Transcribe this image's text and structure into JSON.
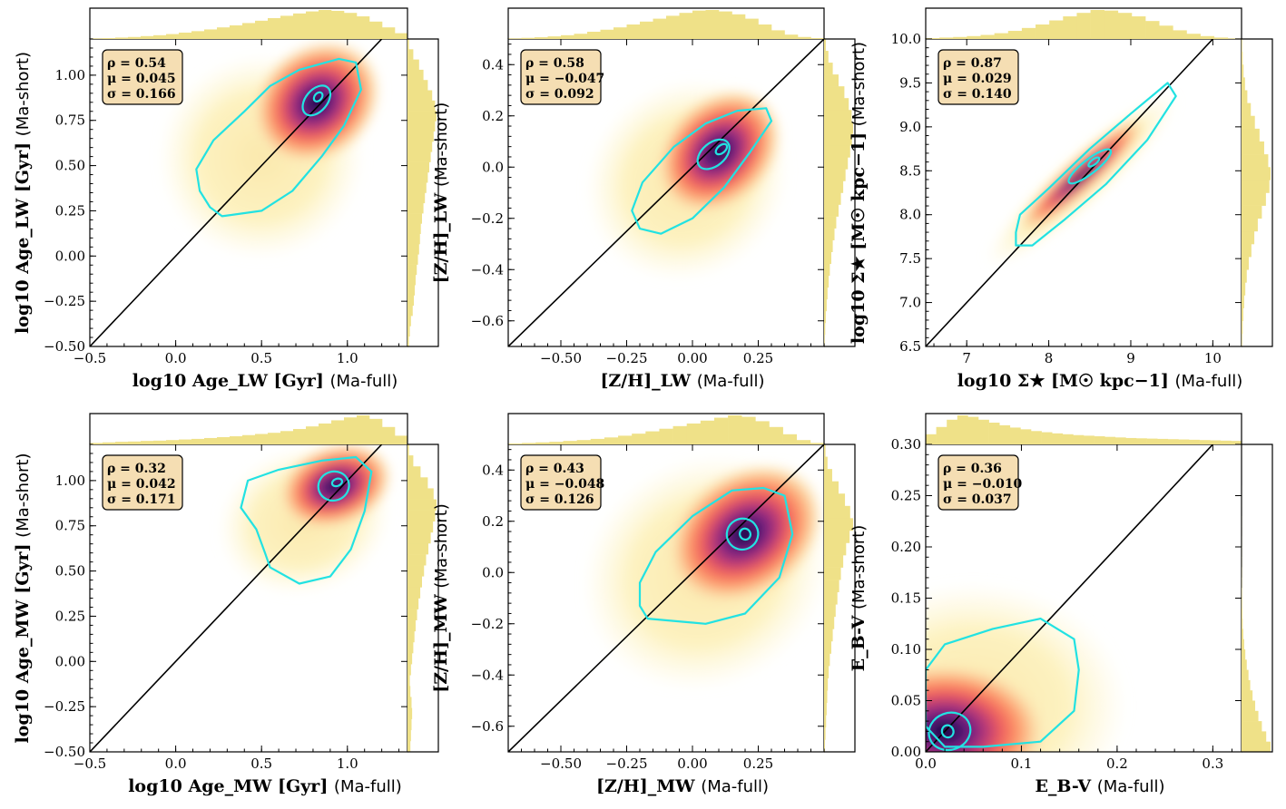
{
  "chart_data": [
    {
      "type": "scatter",
      "title": "",
      "xlabel": {
        "main": "log10 Age_LW [Gyr]",
        "suffix": "(Ma-full)"
      },
      "ylabel": {
        "main": "log10 Age_LW [Gyr]",
        "suffix": "(Ma-short)"
      },
      "xlim": [
        -0.5,
        1.35
      ],
      "ylim": [
        -0.5,
        1.2
      ],
      "xticks": [
        -0.5,
        0.0,
        0.5,
        1.0
      ],
      "xtick_labels": [
        "−0.5",
        "0.0",
        "0.5",
        "1.0"
      ],
      "yticks": [
        -0.5,
        -0.25,
        0.0,
        0.25,
        0.5,
        0.75,
        1.0
      ],
      "ytick_labels": [
        "−0.50",
        "−0.25",
        "0.00",
        "0.25",
        "0.50",
        "0.75",
        "1.00"
      ],
      "stats": [
        "ρ = 0.54",
        "μ = 0.045",
        "σ = 0.166"
      ],
      "density_peak": [
        0.82,
        0.85
      ],
      "cloud_center": [
        0.5,
        0.55
      ],
      "cloud_spread": [
        0.45,
        0.42
      ],
      "cloud_rotation_deg": 40,
      "core_ellipse": {
        "center": [
          0.82,
          0.86
        ],
        "rx": 0.1,
        "ry": 0.06,
        "angle_deg": 50
      },
      "peak_ellipse": {
        "center": [
          0.83,
          0.88
        ],
        "rx": 0.03,
        "ry": 0.02,
        "angle_deg": 50
      },
      "outer_contour": [
        [
          0.27,
          0.22
        ],
        [
          0.5,
          0.25
        ],
        [
          0.68,
          0.36
        ],
        [
          0.85,
          0.55
        ],
        [
          0.98,
          0.72
        ],
        [
          1.08,
          0.92
        ],
        [
          1.05,
          1.07
        ],
        [
          0.95,
          1.09
        ],
        [
          0.72,
          1.03
        ],
        [
          0.55,
          0.94
        ],
        [
          0.4,
          0.8
        ],
        [
          0.22,
          0.64
        ],
        [
          0.12,
          0.48
        ],
        [
          0.14,
          0.36
        ],
        [
          0.2,
          0.27
        ]
      ],
      "hist_top": [
        0.02,
        0.03,
        0.05,
        0.07,
        0.1,
        0.13,
        0.17,
        0.22,
        0.27,
        0.33,
        0.4,
        0.47,
        0.55,
        0.63,
        0.72,
        0.8,
        0.88,
        0.95,
        1.0,
        0.97,
        0.9,
        0.78,
        0.6,
        0.4,
        0.2
      ],
      "hist_right": [
        0.05,
        0.08,
        0.12,
        0.18,
        0.22,
        0.25,
        0.28,
        0.32,
        0.36,
        0.4,
        0.43,
        0.46,
        0.5,
        0.55,
        0.6,
        0.65,
        0.7,
        0.75,
        0.8,
        0.85,
        0.9,
        0.95,
        1.0,
        0.95,
        0.85,
        0.7,
        0.55,
        0.4,
        0.2,
        0.05
      ]
    },
    {
      "type": "scatter",
      "title": "",
      "xlabel": {
        "main": "[Z/H]_LW",
        "suffix": "(Ma-full)"
      },
      "ylabel": {
        "main": "[Z/H]_LW",
        "suffix": "(Ma-short)"
      },
      "xlim": [
        -0.7,
        0.5
      ],
      "ylim": [
        -0.7,
        0.5
      ],
      "xticks": [
        -0.5,
        -0.25,
        0.0,
        0.25
      ],
      "xtick_labels": [
        "−0.50",
        "−0.25",
        "0.00",
        "0.25"
      ],
      "yticks": [
        -0.6,
        -0.4,
        -0.2,
        0.0,
        0.2,
        0.4
      ],
      "ytick_labels": [
        "−0.6",
        "−0.4",
        "−0.2",
        "0.0",
        "0.2",
        "0.4"
      ],
      "stats": [
        "ρ = 0.58",
        "μ = −0.047",
        "σ = 0.092"
      ],
      "density_peak": [
        0.1,
        0.06
      ],
      "cloud_center": [
        -0.02,
        -0.05
      ],
      "cloud_spread": [
        0.3,
        0.28
      ],
      "cloud_rotation_deg": 45,
      "core_ellipse": {
        "center": [
          0.08,
          0.05
        ],
        "rx": 0.07,
        "ry": 0.045,
        "angle_deg": 40
      },
      "peak_ellipse": {
        "center": [
          0.11,
          0.07
        ],
        "rx": 0.025,
        "ry": 0.015,
        "angle_deg": 40
      },
      "outer_contour": [
        [
          -0.12,
          -0.26
        ],
        [
          0.0,
          -0.2
        ],
        [
          0.12,
          -0.08
        ],
        [
          0.22,
          0.06
        ],
        [
          0.3,
          0.18
        ],
        [
          0.28,
          0.23
        ],
        [
          0.17,
          0.22
        ],
        [
          0.05,
          0.17
        ],
        [
          -0.07,
          0.08
        ],
        [
          -0.19,
          -0.06
        ],
        [
          -0.23,
          -0.17
        ],
        [
          -0.2,
          -0.24
        ]
      ],
      "hist_top": [
        0.02,
        0.04,
        0.06,
        0.09,
        0.13,
        0.18,
        0.25,
        0.32,
        0.4,
        0.5,
        0.6,
        0.7,
        0.8,
        0.9,
        0.98,
        1.0,
        0.95,
        0.85,
        0.7,
        0.5,
        0.3,
        0.15,
        0.07,
        0.03
      ],
      "hist_right": [
        0.02,
        0.04,
        0.06,
        0.09,
        0.12,
        0.16,
        0.2,
        0.25,
        0.3,
        0.36,
        0.42,
        0.5,
        0.58,
        0.66,
        0.74,
        0.82,
        0.9,
        0.96,
        1.0,
        0.95,
        0.85,
        0.7,
        0.5,
        0.3,
        0.15,
        0.06
      ]
    },
    {
      "type": "scatter",
      "title": "",
      "xlabel": {
        "main": "log10 Σ★ [M☉ kpc−1]",
        "suffix": "(Ma-full)"
      },
      "ylabel": {
        "main": "log10 Σ★ [M☉ kpc−1]",
        "suffix": "(Ma-short)"
      },
      "xlim": [
        6.5,
        10.35
      ],
      "ylim": [
        6.5,
        10.0
      ],
      "xticks": [
        7,
        8,
        9,
        10
      ],
      "xtick_labels": [
        "7",
        "8",
        "9",
        "10"
      ],
      "yticks": [
        6.5,
        7.0,
        7.5,
        8.0,
        8.5,
        9.0,
        9.5,
        10.0
      ],
      "ytick_labels": [
        "6.5",
        "7.0",
        "7.5",
        "8.0",
        "8.5",
        "9.0",
        "9.5",
        "10.0"
      ],
      "stats": [
        "ρ = 0.87",
        "μ = 0.029",
        "σ = 0.140"
      ],
      "density_peak": [
        8.4,
        8.45
      ],
      "cloud_center": [
        8.4,
        8.4
      ],
      "cloud_spread": [
        1.15,
        0.22
      ],
      "cloud_rotation_deg": 42,
      "core_ellipse": {
        "center": [
          8.5,
          8.55
        ],
        "rx": 0.32,
        "ry": 0.08,
        "angle_deg": 38
      },
      "peak_ellipse": {
        "center": [
          8.55,
          8.6
        ],
        "rx": 0.08,
        "ry": 0.03,
        "angle_deg": 38
      },
      "outer_contour": [
        [
          7.6,
          7.65
        ],
        [
          7.8,
          7.65
        ],
        [
          8.2,
          7.95
        ],
        [
          8.7,
          8.35
        ],
        [
          9.2,
          8.85
        ],
        [
          9.55,
          9.35
        ],
        [
          9.45,
          9.5
        ],
        [
          9.0,
          9.15
        ],
        [
          8.5,
          8.75
        ],
        [
          8.0,
          8.3
        ],
        [
          7.65,
          8.0
        ],
        [
          7.6,
          7.8
        ]
      ],
      "hist_top": [
        0.03,
        0.05,
        0.07,
        0.1,
        0.14,
        0.2,
        0.28,
        0.38,
        0.5,
        0.64,
        0.78,
        0.9,
        1.0,
        0.98,
        0.9,
        0.78,
        0.62,
        0.46,
        0.3,
        0.18,
        0.1,
        0.05,
        0.02
      ],
      "hist_right": [
        0.02,
        0.04,
        0.06,
        0.09,
        0.13,
        0.18,
        0.25,
        0.34,
        0.44,
        0.56,
        0.7,
        0.84,
        0.96,
        1.0,
        0.92,
        0.78,
        0.62,
        0.46,
        0.32,
        0.2,
        0.12,
        0.07,
        0.04,
        0.02
      ]
    },
    {
      "type": "scatter",
      "title": "",
      "xlabel": {
        "main": "log10 Age_MW [Gyr]",
        "suffix": "(Ma-full)"
      },
      "ylabel": {
        "main": "log10 Age_MW [Gyr]",
        "suffix": "(Ma-short)"
      },
      "xlim": [
        -0.5,
        1.35
      ],
      "ylim": [
        -0.5,
        1.2
      ],
      "xticks": [
        -0.5,
        0.0,
        0.5,
        1.0
      ],
      "xtick_labels": [
        "−0.5",
        "0.0",
        "0.5",
        "1.0"
      ],
      "yticks": [
        -0.5,
        -0.25,
        0.0,
        0.25,
        0.5,
        0.75,
        1.0
      ],
      "ytick_labels": [
        "−0.50",
        "−0.25",
        "0.00",
        "0.25",
        "0.50",
        "0.75",
        "1.00"
      ],
      "stats": [
        "ρ = 0.32",
        "μ = 0.042",
        "σ = 0.171"
      ],
      "density_peak": [
        0.93,
        0.97
      ],
      "cloud_center": [
        0.75,
        0.78
      ],
      "cloud_spread": [
        0.38,
        0.3
      ],
      "cloud_rotation_deg": 20,
      "core_ellipse": {
        "center": [
          0.92,
          0.97
        ],
        "rx": 0.09,
        "ry": 0.08,
        "angle_deg": 20
      },
      "peak_ellipse": {
        "center": [
          0.94,
          0.99
        ],
        "rx": 0.03,
        "ry": 0.02,
        "angle_deg": 20
      },
      "outer_contour": [
        [
          0.55,
          0.52
        ],
        [
          0.72,
          0.43
        ],
        [
          0.9,
          0.47
        ],
        [
          1.02,
          0.62
        ],
        [
          1.1,
          0.83
        ],
        [
          1.14,
          1.05
        ],
        [
          1.05,
          1.13
        ],
        [
          0.85,
          1.11
        ],
        [
          0.6,
          1.06
        ],
        [
          0.42,
          1.0
        ],
        [
          0.38,
          0.85
        ],
        [
          0.47,
          0.73
        ],
        [
          0.52,
          0.6
        ]
      ],
      "hist_top": [
        0.05,
        0.07,
        0.09,
        0.1,
        0.12,
        0.13,
        0.15,
        0.17,
        0.19,
        0.22,
        0.25,
        0.28,
        0.32,
        0.36,
        0.4,
        0.46,
        0.53,
        0.62,
        0.72,
        0.83,
        0.93,
        1.0,
        0.88,
        0.6,
        0.3
      ],
      "hist_right": [
        0.1,
        0.12,
        0.14,
        0.16,
        0.14,
        0.1,
        0.08,
        0.12,
        0.16,
        0.2,
        0.24,
        0.28,
        0.33,
        0.38,
        0.44,
        0.5,
        0.57,
        0.64,
        0.72,
        0.8,
        0.88,
        0.95,
        1.0,
        0.9,
        0.7,
        0.45,
        0.2,
        0.05
      ]
    },
    {
      "type": "scatter",
      "title": "",
      "xlabel": {
        "main": "[Z/H]_MW",
        "suffix": "(Ma-full)"
      },
      "ylabel": {
        "main": "[Z/H]_MW",
        "suffix": "(Ma-short)"
      },
      "xlim": [
        -0.7,
        0.5
      ],
      "ylim": [
        -0.7,
        0.5
      ],
      "xticks": [
        -0.5,
        -0.25,
        0.0,
        0.25
      ],
      "xtick_labels": [
        "−0.50",
        "−0.25",
        "0.00",
        "0.25"
      ],
      "yticks": [
        -0.6,
        -0.4,
        -0.2,
        0.0,
        0.2,
        0.4
      ],
      "ytick_labels": [
        "−0.6",
        "−0.4",
        "−0.2",
        "0.0",
        "0.2",
        "0.4"
      ],
      "stats": [
        "ρ = 0.43",
        "μ = −0.048",
        "σ = 0.126"
      ],
      "density_peak": [
        0.2,
        0.15
      ],
      "cloud_center": [
        0.05,
        0.0
      ],
      "cloud_spread": [
        0.36,
        0.33
      ],
      "cloud_rotation_deg": 35,
      "core_ellipse": {
        "center": [
          0.19,
          0.15
        ],
        "rx": 0.06,
        "ry": 0.06,
        "angle_deg": 30
      },
      "peak_ellipse": {
        "center": [
          0.2,
          0.15
        ],
        "rx": 0.02,
        "ry": 0.022,
        "angle_deg": 30
      },
      "outer_contour": [
        [
          -0.17,
          -0.18
        ],
        [
          0.05,
          -0.2
        ],
        [
          0.2,
          -0.16
        ],
        [
          0.33,
          -0.02
        ],
        [
          0.38,
          0.15
        ],
        [
          0.35,
          0.3
        ],
        [
          0.27,
          0.33
        ],
        [
          0.15,
          0.32
        ],
        [
          0.0,
          0.22
        ],
        [
          -0.14,
          0.08
        ],
        [
          -0.2,
          -0.04
        ],
        [
          -0.2,
          -0.13
        ]
      ],
      "hist_top": [
        0.03,
        0.05,
        0.07,
        0.09,
        0.12,
        0.15,
        0.19,
        0.24,
        0.3,
        0.37,
        0.45,
        0.54,
        0.63,
        0.72,
        0.82,
        0.92,
        1.0,
        0.95,
        0.8,
        0.6,
        0.35,
        0.15,
        0.05
      ],
      "hist_right": [
        0.03,
        0.05,
        0.07,
        0.09,
        0.11,
        0.13,
        0.16,
        0.2,
        0.25,
        0.3,
        0.35,
        0.4,
        0.46,
        0.52,
        0.58,
        0.66,
        0.76,
        0.88,
        1.0,
        0.9,
        0.72,
        0.5,
        0.28,
        0.12,
        0.05
      ]
    },
    {
      "type": "scatter",
      "title": "",
      "xlabel": {
        "main": "E_B-V",
        "suffix": "(Ma-full)"
      },
      "ylabel": {
        "main": "E_B-V",
        "suffix": "(Ma-short)"
      },
      "xlim": [
        0.0,
        0.33
      ],
      "ylim": [
        0.0,
        0.3
      ],
      "xticks": [
        0.0,
        0.1,
        0.2,
        0.3
      ],
      "xtick_labels": [
        "0.0",
        "0.1",
        "0.2",
        "0.3"
      ],
      "yticks": [
        0.0,
        0.05,
        0.1,
        0.15,
        0.2,
        0.25,
        0.3
      ],
      "ytick_labels": [
        "0.00",
        "0.05",
        "0.10",
        "0.15",
        "0.20",
        "0.25",
        "0.30"
      ],
      "stats": [
        "ρ = 0.36",
        "μ = −0.010",
        "σ = 0.037"
      ],
      "density_peak": [
        0.02,
        0.02
      ],
      "cloud_center": [
        0.05,
        0.045
      ],
      "cloud_spread": [
        0.12,
        0.09
      ],
      "cloud_rotation_deg": 0,
      "core_ellipse": {
        "center": [
          0.025,
          0.02
        ],
        "rx": 0.022,
        "ry": 0.018,
        "angle_deg": 20
      },
      "peak_ellipse": {
        "center": [
          0.023,
          0.02
        ],
        "rx": 0.006,
        "ry": 0.006,
        "angle_deg": 20
      },
      "outer_contour": [
        [
          0.0,
          0.025
        ],
        [
          0.02,
          0.005
        ],
        [
          0.06,
          0.005
        ],
        [
          0.12,
          0.01
        ],
        [
          0.155,
          0.04
        ],
        [
          0.16,
          0.08
        ],
        [
          0.155,
          0.11
        ],
        [
          0.12,
          0.13
        ],
        [
          0.07,
          0.12
        ],
        [
          0.02,
          0.105
        ],
        [
          0.0,
          0.08
        ]
      ],
      "hist_top": [
        0.35,
        0.6,
        0.85,
        1.0,
        0.95,
        0.85,
        0.75,
        0.66,
        0.58,
        0.52,
        0.46,
        0.42,
        0.38,
        0.35,
        0.32,
        0.3,
        0.28,
        0.26,
        0.24,
        0.22,
        0.21,
        0.2,
        0.19,
        0.18,
        0.17,
        0.16,
        0.15,
        0.14,
        0.13,
        0.12
      ],
      "hist_right": [
        1.0,
        0.85,
        0.7,
        0.58,
        0.47,
        0.38,
        0.3,
        0.24,
        0.18,
        0.13,
        0.09,
        0.06,
        0.04,
        0.03,
        0.02,
        0.015,
        0.01,
        0.008,
        0.005,
        0.004,
        0.003,
        0.002,
        0.002,
        0.001,
        0.001,
        0.001,
        0.0,
        0.0,
        0.0,
        0.0
      ]
    }
  ]
}
